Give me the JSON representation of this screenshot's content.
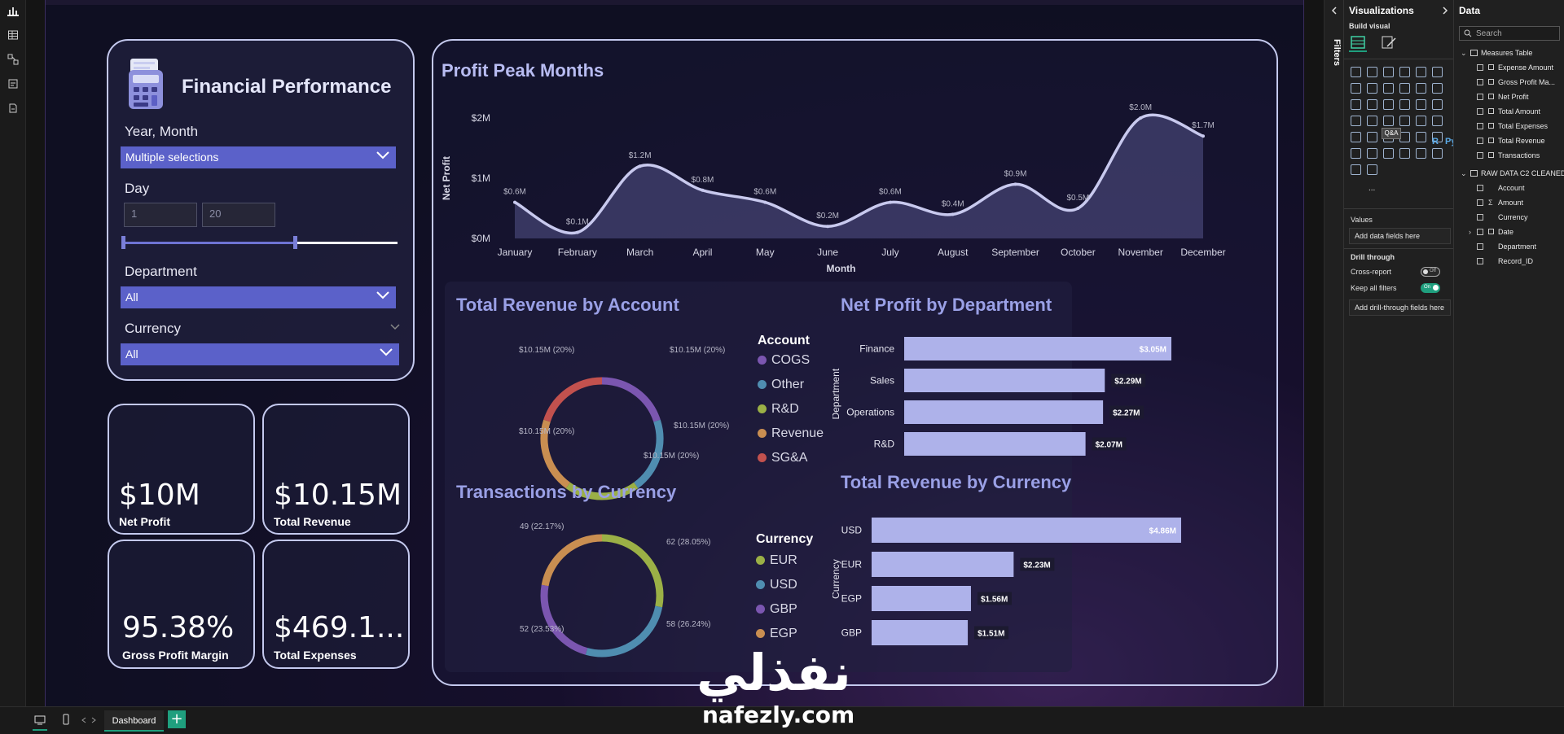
{
  "report": {
    "title": "Financial Performance",
    "slicers": {
      "year_month": {
        "label": "Year, Month",
        "value": "Multiple selections"
      },
      "day": {
        "label": "Day",
        "min": "1",
        "max": "20",
        "range": [
          1,
          20
        ]
      },
      "department": {
        "label": "Department",
        "value": "All"
      },
      "currency": {
        "label": "Currency",
        "value": "All"
      }
    },
    "kpis": [
      {
        "value": "$10M",
        "label": "Net Profit"
      },
      {
        "value": "$10.15M",
        "label": "Total Revenue"
      },
      {
        "value": "95.38%",
        "label": "Gross Profit Margin"
      },
      {
        "value": "$469.1...",
        "label": "Total Expenses"
      }
    ],
    "sections": {
      "profit_peak": "Profit Peak Months",
      "revenue_by_account": "Total Revenue by Account",
      "net_profit_by_dept": "Net Profit by Department",
      "transactions_by_currency": "Transactions by Currency",
      "revenue_by_currency": "Total Revenue by Currency"
    }
  },
  "chart_data": [
    {
      "type": "area",
      "title": "Profit Peak Months",
      "xlabel": "Month",
      "ylabel": "Net Profit",
      "categories": [
        "January",
        "February",
        "March",
        "April",
        "May",
        "June",
        "July",
        "August",
        "September",
        "October",
        "November",
        "December"
      ],
      "values": [
        0.6,
        0.1,
        1.2,
        0.8,
        0.6,
        0.2,
        0.6,
        0.4,
        0.9,
        0.5,
        2.0,
        1.7
      ],
      "data_labels": [
        "$0.6M",
        "$0.1M",
        "$1.2M",
        "$0.8M",
        "$0.6M",
        "$0.2M",
        "$0.6M",
        "$0.4M",
        "$0.9M",
        "$0.5M",
        "$2.0M",
        "$1.7M"
      ],
      "ylim": [
        0,
        2
      ],
      "yticks": [
        "$0M",
        "$1M",
        "$2M"
      ],
      "color": "#c8c9ee"
    },
    {
      "type": "pie",
      "title": "Total Revenue by Account",
      "legend_title": "Account",
      "categories": [
        "COGS",
        "Other",
        "R&D",
        "Revenue",
        "SG&A"
      ],
      "values": [
        10.15,
        10.15,
        10.15,
        10.15,
        10.15
      ],
      "data_labels": [
        "$10.15M (20%)",
        "$10.15M (20%)",
        "$10.15M (20%)",
        "$10.15M (20%)",
        "$10.15M (20%)"
      ],
      "colors": [
        "#7b56b0",
        "#4f8db0",
        "#9bb046",
        "#c98e51",
        "#c2514e"
      ]
    },
    {
      "type": "bar",
      "title": "Net Profit by Department",
      "ylabel": "Department",
      "categories": [
        "Finance",
        "Sales",
        "Operations",
        "R&D"
      ],
      "values": [
        3.05,
        2.29,
        2.27,
        2.07
      ],
      "data_labels": [
        "$3.05M",
        "$2.29M",
        "$2.27M",
        "$2.07M"
      ],
      "color": "#aeb2ea"
    },
    {
      "type": "pie",
      "title": "Transactions by Currency",
      "legend_title": "Currency",
      "categories": [
        "EUR",
        "USD",
        "GBP",
        "EGP"
      ],
      "values": [
        62,
        58,
        52,
        49
      ],
      "data_labels": [
        "62 (28.05%)",
        "58 (26.24%)",
        "52 (23.53%)",
        "49 (22.17%)"
      ],
      "colors": [
        "#9bb046",
        "#4f8db0",
        "#7b56b0",
        "#c98e51"
      ]
    },
    {
      "type": "bar",
      "title": "Total Revenue by Currency",
      "ylabel": "Currency",
      "categories": [
        "USD",
        "EUR",
        "EGP",
        "GBP"
      ],
      "values": [
        4.86,
        2.23,
        1.56,
        1.51
      ],
      "data_labels": [
        "$4.86M",
        "$2.23M",
        "$1.56M",
        "$1.51M"
      ],
      "color": "#aeb2ea"
    }
  ],
  "panes": {
    "filters_label": "Filters",
    "visualizations": {
      "title": "Visualizations",
      "build_visual": "Build visual",
      "tooltip": "Q&A",
      "values_label": "Values",
      "add_data_fields": "Add data fields here",
      "drill_through": "Drill through",
      "cross_report": "Cross-report",
      "cross_report_state": "Off",
      "keep_all_filters": "Keep all filters",
      "keep_all_filters_state": "On",
      "add_drill_fields": "Add drill-through fields here",
      "more": "...",
      "r_icon": "R",
      "py_icon": "Py"
    },
    "data": {
      "title": "Data",
      "search_placeholder": "Search",
      "tables": [
        {
          "name": "Measures Table",
          "fields": [
            "Expense Amount",
            "Gross Profit Ma...",
            "Net Profit",
            "Total Amount",
            "Total Expenses",
            "Total Revenue",
            "Transactions"
          ]
        },
        {
          "name": "RAW DATA C2 CLEANED",
          "fields": [
            "Account",
            "Amount",
            "Currency",
            "Date",
            "Department",
            "Record_ID"
          ]
        }
      ],
      "sigma": "Σ"
    }
  },
  "bottom": {
    "page_tab": "Dashboard",
    "add_label": "+"
  },
  "watermark": {
    "arabic": "نفذلي",
    "latin": "nafezly.com"
  }
}
